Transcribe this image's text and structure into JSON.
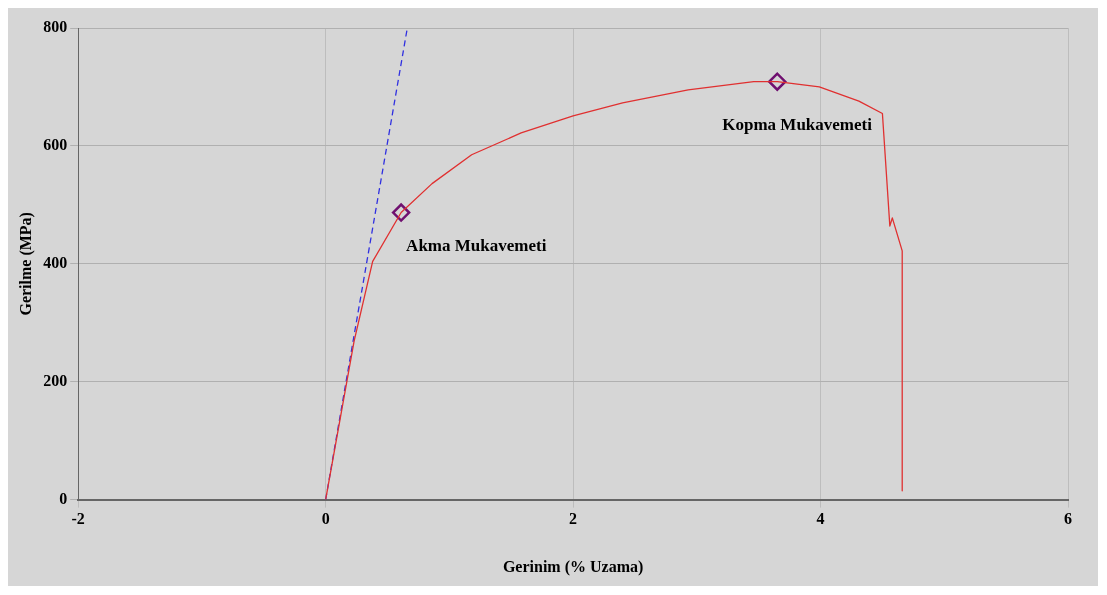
{
  "chart_data": {
    "type": "line",
    "xlabel": "Gerinim (% Uzama)",
    "ylabel": "Gerilme (MPa)",
    "xlim": [
      -2,
      6
    ],
    "xticks": [
      -2,
      0,
      2,
      4,
      6
    ],
    "ylim": [
      0,
      800
    ],
    "yticks": [
      0,
      200,
      400,
      600,
      800
    ],
    "grid": true,
    "series": [
      {
        "color": "#e03030",
        "line_style": "solid",
        "marker": "none",
        "x": [
          0,
          0.23,
          0.38,
          0.61,
          0.86,
          1.18,
          1.58,
          2,
          2.4,
          2.93,
          3.46,
          3.65,
          3.99,
          4.31,
          4.5,
          4.56,
          4.58,
          4.66,
          4.66
        ],
        "values": [
          0,
          269,
          404,
          487,
          536,
          585,
          622,
          651,
          673,
          695,
          709,
          709,
          700,
          676,
          655,
          464,
          478,
          422,
          15
        ]
      },
      {
        "color": "#3030e0",
        "line_style": "dashed",
        "marker": "none",
        "x": [
          0,
          0.66
        ],
        "values": [
          0,
          800
        ]
      },
      {
        "type": "scatter",
        "color": "#701070",
        "marker": "diamond",
        "x": [
          0.61,
          3.65
        ],
        "values": [
          487,
          709
        ]
      }
    ],
    "annotations": [
      {
        "text": "Akma Mukavemeti",
        "x": 0.61,
        "y": 487
      },
      {
        "text": "Kopma Mukavemeti",
        "x": 3.65,
        "y": 709
      }
    ]
  }
}
